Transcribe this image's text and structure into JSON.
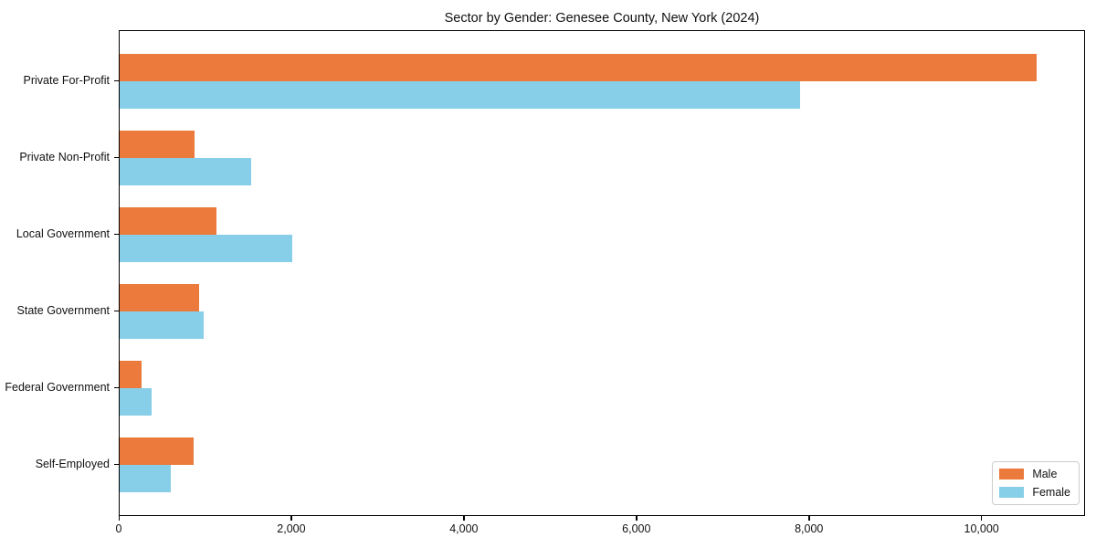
{
  "chart_data": {
    "type": "bar",
    "orientation": "horizontal",
    "title": "Sector by Gender: Genesee County, New York (2024)",
    "categories": [
      "Private For-Profit",
      "Private Non-Profit",
      "Local Government",
      "State Government",
      "Federal Government",
      "Self-Employed"
    ],
    "series": [
      {
        "name": "Male",
        "color": "#EB7A3C",
        "values": [
          10630,
          870,
          1125,
          925,
          250,
          860
        ]
      },
      {
        "name": "Female",
        "color": "#87CEE8",
        "values": [
          7890,
          1520,
          2005,
          975,
          375,
          595
        ]
      }
    ],
    "xlim": [
      0,
      11200
    ],
    "x_ticks": [
      0,
      2000,
      4000,
      6000,
      8000,
      10000
    ],
    "x_tick_labels": [
      "0",
      "2,000",
      "4,000",
      "6,000",
      "8,000",
      "10,000"
    ],
    "xlabel": "",
    "ylabel": "",
    "grid": false,
    "legend": {
      "position": "lower right",
      "entries": [
        "Male",
        "Female"
      ]
    }
  }
}
